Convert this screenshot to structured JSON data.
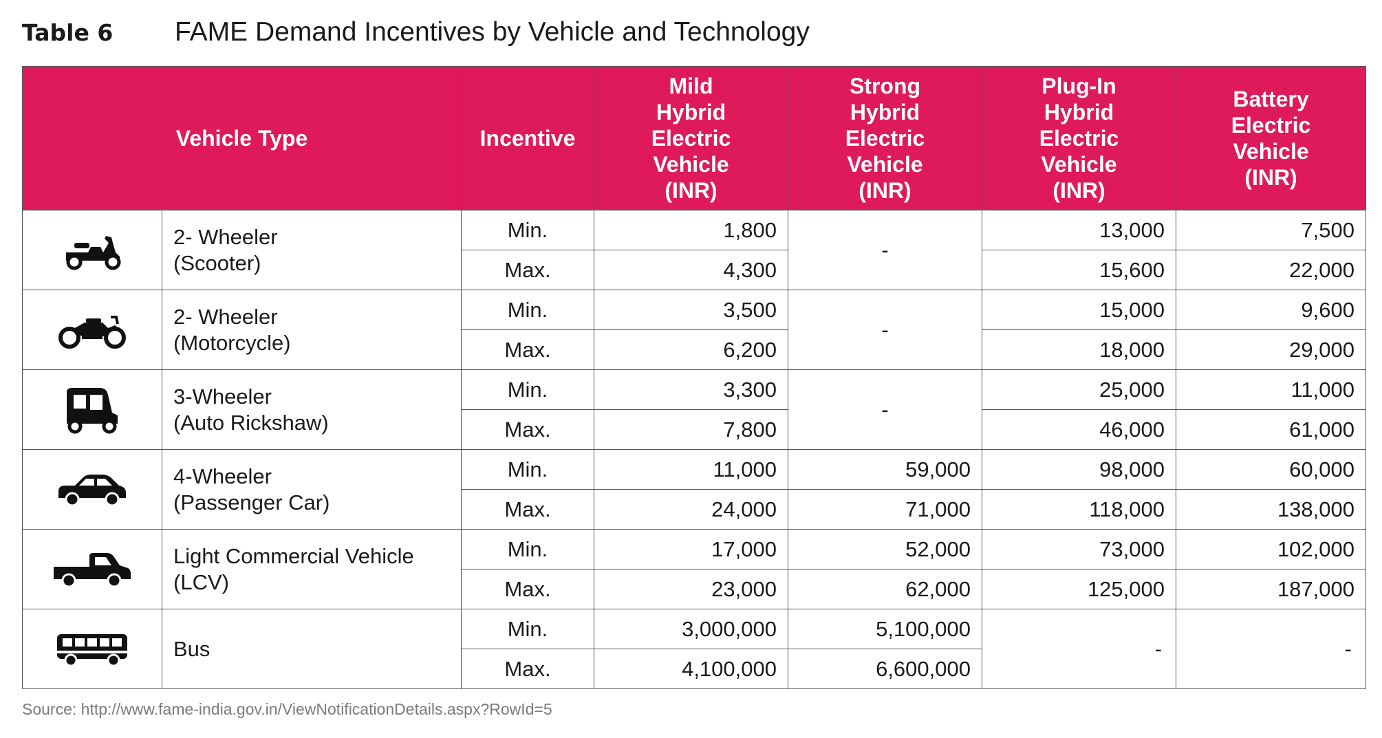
{
  "header": {
    "table_number": "Table 6",
    "title": "FAME Demand Incentives by Vehicle and Technology"
  },
  "columns": {
    "vehicle_type": "Vehicle Type",
    "incentive": "Incentive",
    "mild": [
      "Mild",
      "Hybrid",
      "Electric",
      "Vehicle",
      "(INR)"
    ],
    "strong": [
      "Strong",
      "Hybrid",
      "Electric",
      "Vehicle",
      "(INR)"
    ],
    "plugin": [
      "Plug-In",
      "Hybrid",
      "Electric",
      "Vehicle",
      "(INR)"
    ],
    "battery": [
      "Battery",
      "Electric",
      "Vehicle",
      "(INR)"
    ]
  },
  "rows": [
    {
      "icon": "scooter-icon",
      "name_line1": "2- Wheeler",
      "name_line2": "(Scooter)",
      "strong_merged": "-",
      "min": {
        "label": "Min.",
        "mild": "1,800",
        "plugin": "13,000",
        "battery": "7,500"
      },
      "max": {
        "label": "Max.",
        "mild": "4,300",
        "plugin": "15,600",
        "battery": "22,000"
      }
    },
    {
      "icon": "motorcycle-icon",
      "name_line1": "2- Wheeler",
      "name_line2": "(Motorcycle)",
      "strong_merged": "-",
      "min": {
        "label": "Min.",
        "mild": "3,500",
        "plugin": "15,000",
        "battery": "9,600"
      },
      "max": {
        "label": "Max.",
        "mild": "6,200",
        "plugin": "18,000",
        "battery": "29,000"
      }
    },
    {
      "icon": "auto-rickshaw-icon",
      "name_line1": "3-Wheeler",
      "name_line2": "(Auto Rickshaw)",
      "strong_merged": "-",
      "min": {
        "label": "Min.",
        "mild": "3,300",
        "plugin": "25,000",
        "battery": "11,000"
      },
      "max": {
        "label": "Max.",
        "mild": "7,800",
        "plugin": "46,000",
        "battery": "61,000"
      }
    },
    {
      "icon": "car-icon",
      "name_line1": "4-Wheeler",
      "name_line2": "(Passenger Car)",
      "min": {
        "label": "Min.",
        "mild": "11,000",
        "strong": "59,000",
        "plugin": "98,000",
        "battery": "60,000"
      },
      "max": {
        "label": "Max.",
        "mild": "24,000",
        "strong": "71,000",
        "plugin": "118,000",
        "battery": "138,000"
      }
    },
    {
      "icon": "pickup-truck-icon",
      "name_line1": "Light Commercial Vehicle",
      "name_line2": "(LCV)",
      "min": {
        "label": "Min.",
        "mild": "17,000",
        "strong": "52,000",
        "plugin": "73,000",
        "battery": "102,000"
      },
      "max": {
        "label": "Max.",
        "mild": "23,000",
        "strong": "62,000",
        "plugin": "125,000",
        "battery": "187,000"
      }
    },
    {
      "icon": "bus-icon",
      "name_line1": "Bus",
      "plugin_merged": "-",
      "battery_merged": "-",
      "min": {
        "label": "Min.",
        "mild": "3,000,000",
        "strong": "5,100,000"
      },
      "max": {
        "label": "Max.",
        "mild": "4,100,000",
        "strong": "6,600,000"
      }
    }
  ],
  "source": "Source: http://www.fame-india.gov.in/ViewNotificationDetails.aspx?RowId=5",
  "colors": {
    "header_bg": "#df1a5b",
    "header_text": "#ffffff",
    "border": "#555555",
    "source_text": "#7a7a7a"
  }
}
